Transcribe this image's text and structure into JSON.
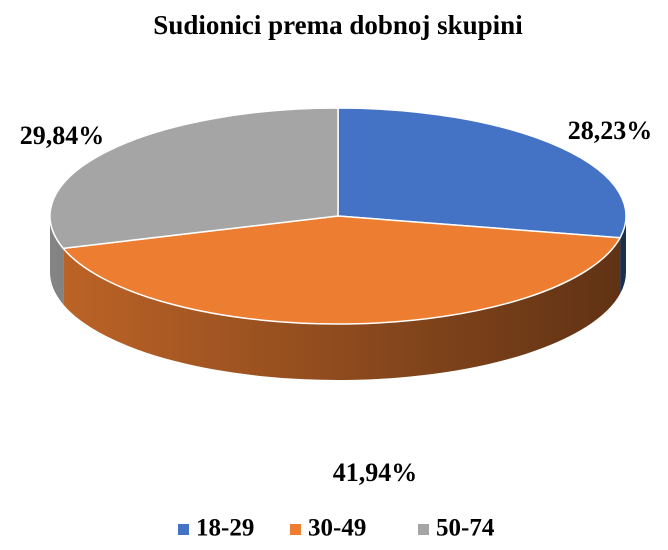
{
  "chart_data": {
    "type": "pie",
    "title": "Sudionici prema dobnoj skupini",
    "categories": [
      "18-29",
      "30-49",
      "50-74"
    ],
    "values": [
      28.23,
      41.94,
      29.84
    ],
    "value_labels": [
      "28,23%",
      "41,94%",
      "29,84%"
    ],
    "colors": [
      "#4472c4",
      "#ed7d31",
      "#a5a5a5"
    ],
    "legend": "bottom"
  }
}
